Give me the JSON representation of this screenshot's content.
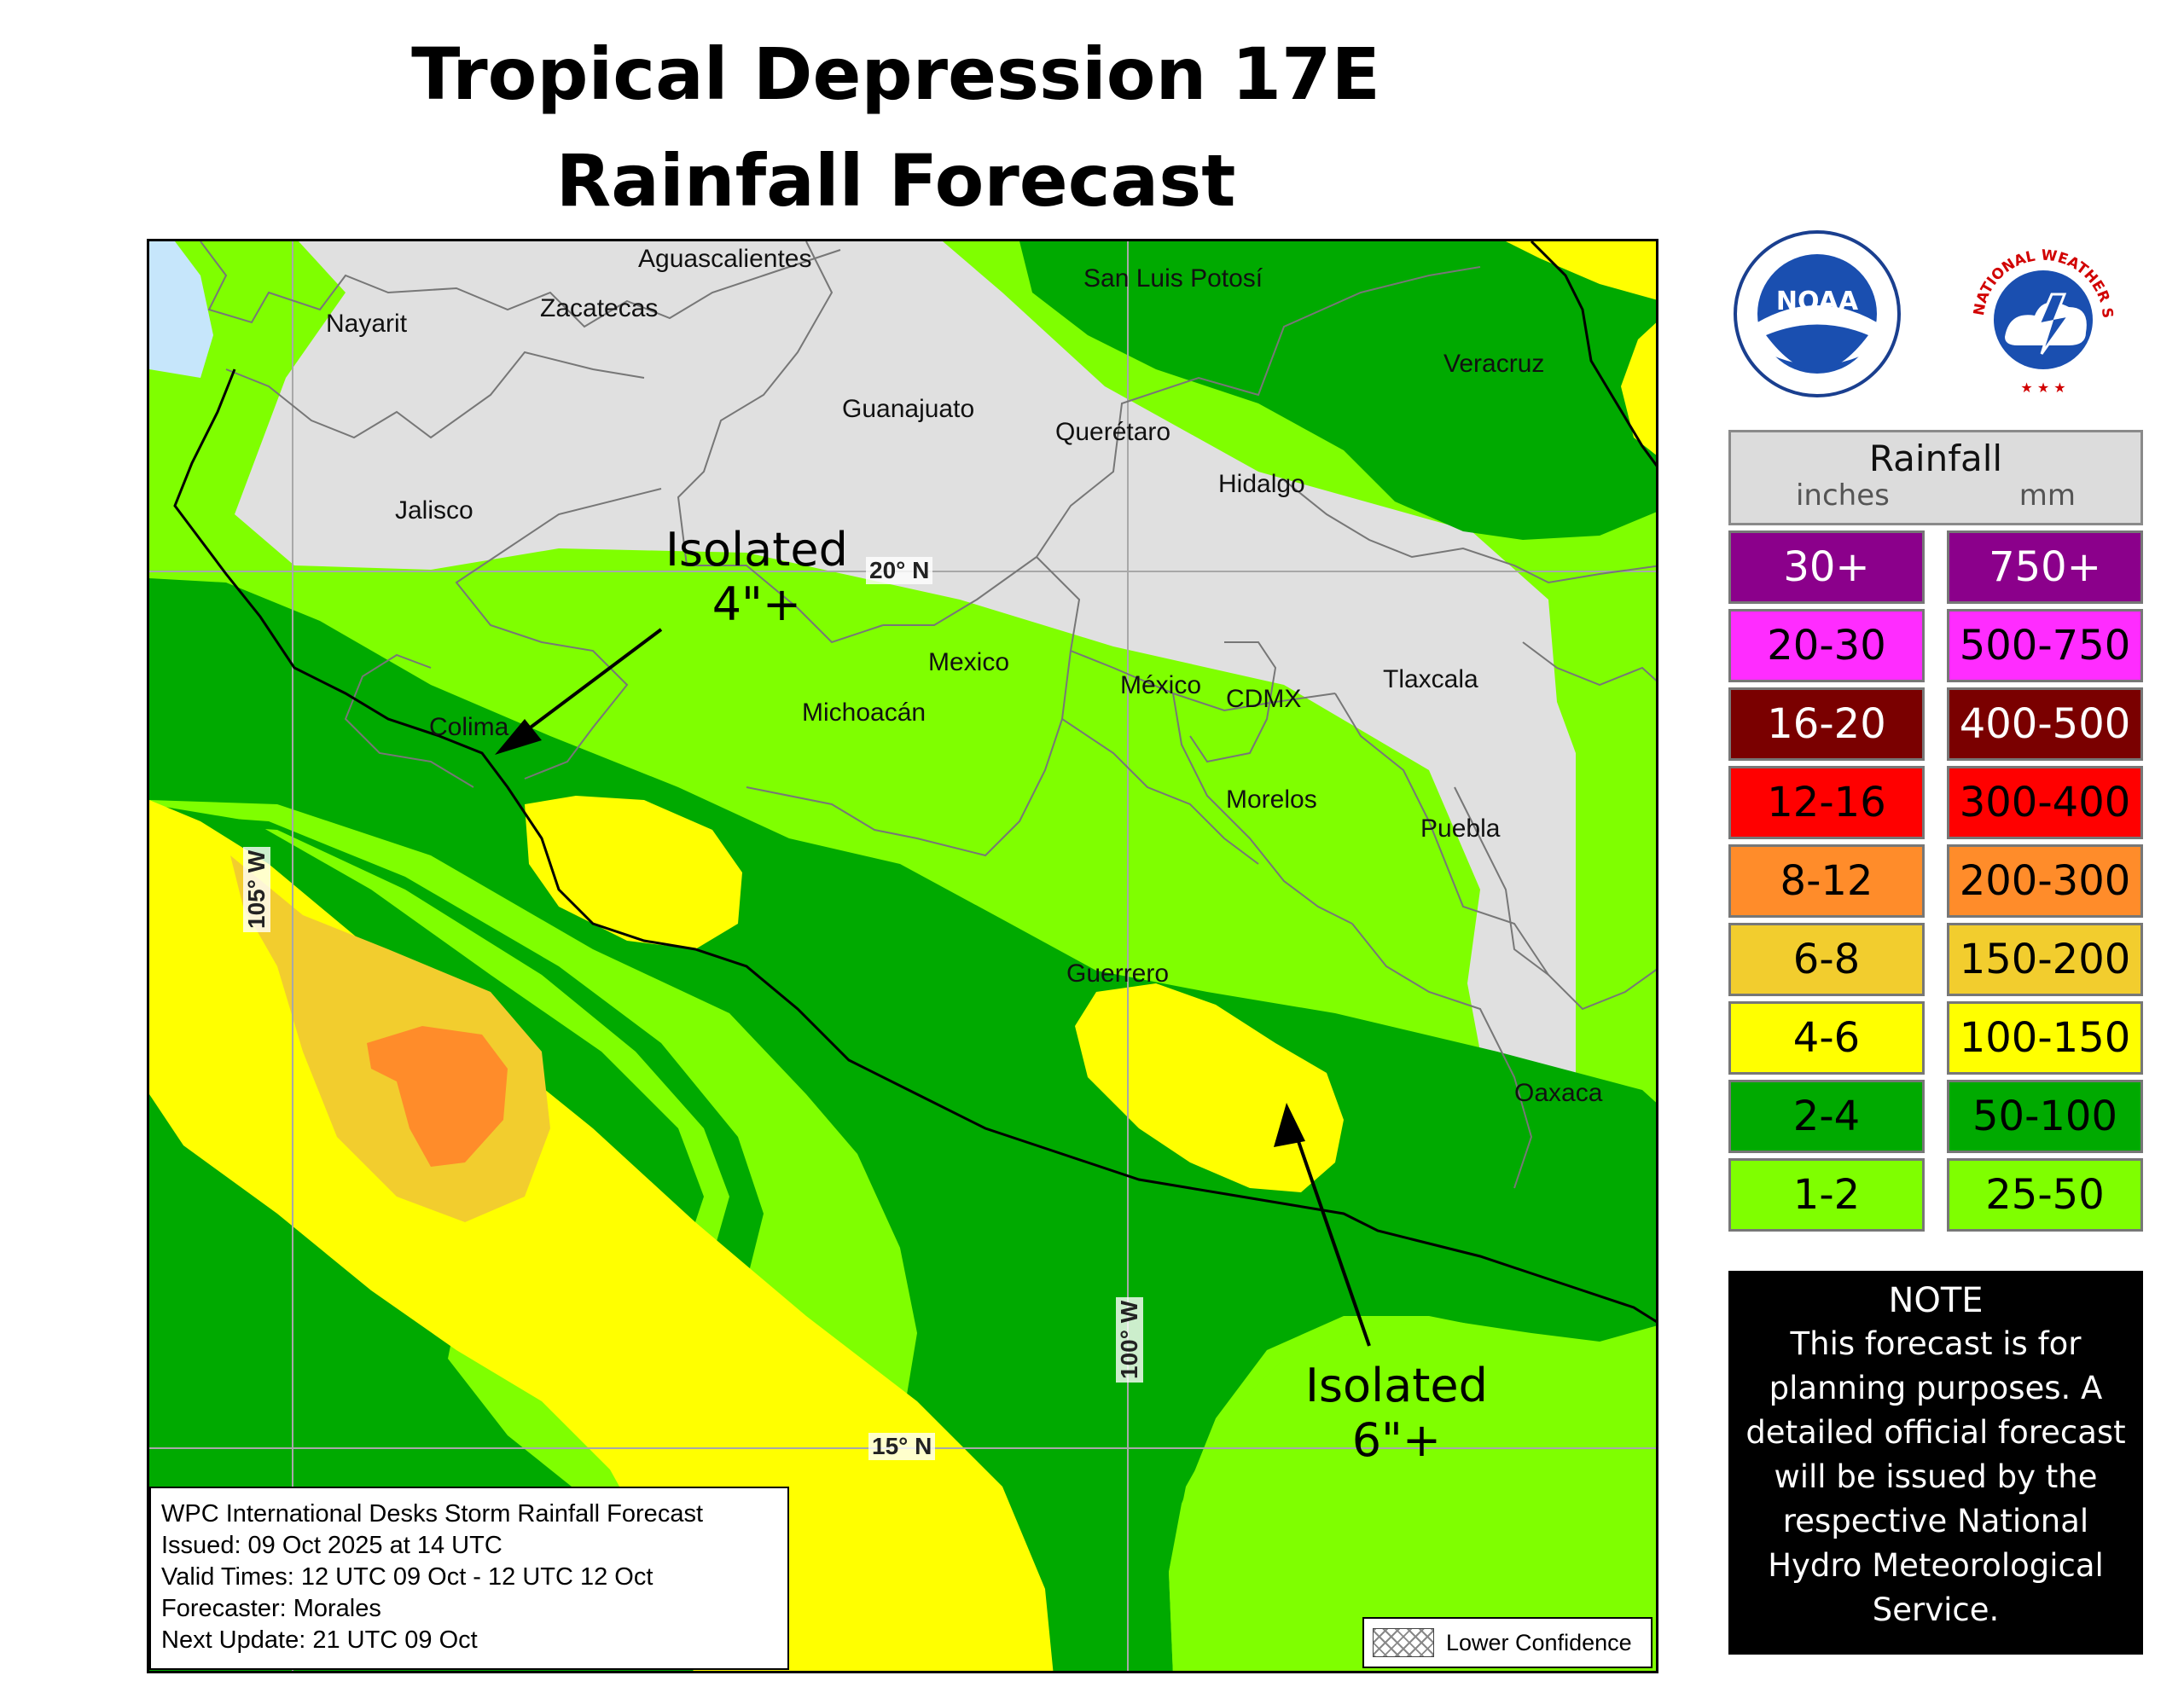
{
  "title": {
    "line1": "Tropical Depression 17E",
    "line2": "Rainfall Forecast"
  },
  "map": {
    "state_labels": [
      "Aguascalientes",
      "Zacatecas",
      "Nayarit",
      "San Luis Potosí",
      "Veracruz",
      "Guanajuato",
      "Querétaro",
      "Hidalgo",
      "Jalisco",
      "Mexico",
      "México",
      "CDMX",
      "Tlaxcala",
      "Michoacán",
      "Colima",
      "Morelos",
      "Puebla",
      "Guerrero",
      "Oaxaca"
    ],
    "grid_labels": {
      "lat20": "20° N",
      "lat15": "15° N",
      "lon105": "105° W",
      "lon100": "100° W"
    },
    "annotations": [
      {
        "line1": "Isolated",
        "line2": "4\"+"
      },
      {
        "line1": "Isolated",
        "line2": "6\"+"
      }
    ],
    "colors": {
      "ocean": "#c6e6fb",
      "no_rain": "#e0e0e0",
      "r1_2": "#7fff00",
      "r2_4": "#00aa00",
      "r4_6": "#ffff00",
      "r6_8": "#f2cd2e",
      "r8_12": "#ff8c2a"
    }
  },
  "info": {
    "lines": [
      "WPC International Desks Storm Rainfall Forecast",
      "Issued: 09 Oct 2025 at 14 UTC",
      "Valid Times: 12 UTC 09 Oct - 12 UTC 12 Oct",
      "Forecaster: Morales",
      "Next Update: 21 UTC 09 Oct"
    ],
    "confidence_label": "Lower Confidence"
  },
  "logos": {
    "noaa_text": "NOAA",
    "nws_text": "NATIONAL WEATHER SERVICE"
  },
  "legend": {
    "title": "Rainfall",
    "unit_in": "inches",
    "unit_mm": "mm",
    "rows": [
      {
        "in": "30+",
        "mm": "750+",
        "color": "#8b008b",
        "text_color": "#ffffff"
      },
      {
        "in": "20-30",
        "mm": "500-750",
        "color": "#ff2cff",
        "text_color": "#000000"
      },
      {
        "in": "16-20",
        "mm": "400-500",
        "color": "#7a0000",
        "text_color": "#ffffff"
      },
      {
        "in": "12-16",
        "mm": "300-400",
        "color": "#ff0000",
        "text_color": "#000000"
      },
      {
        "in": "8-12",
        "mm": "200-300",
        "color": "#ff8c2a",
        "text_color": "#000000"
      },
      {
        "in": "6-8",
        "mm": "150-200",
        "color": "#f2cd2e",
        "text_color": "#000000"
      },
      {
        "in": "4-6",
        "mm": "100-150",
        "color": "#ffff00",
        "text_color": "#000000"
      },
      {
        "in": "2-4",
        "mm": "50-100",
        "color": "#00aa00",
        "text_color": "#000000"
      },
      {
        "in": "1-2",
        "mm": "25-50",
        "color": "#7fff00",
        "text_color": "#000000"
      }
    ]
  },
  "note": {
    "title": "NOTE",
    "body": "This forecast is for planning purposes. A detailed official forecast will be issued by the respective National Hydro Meteorological Service."
  }
}
